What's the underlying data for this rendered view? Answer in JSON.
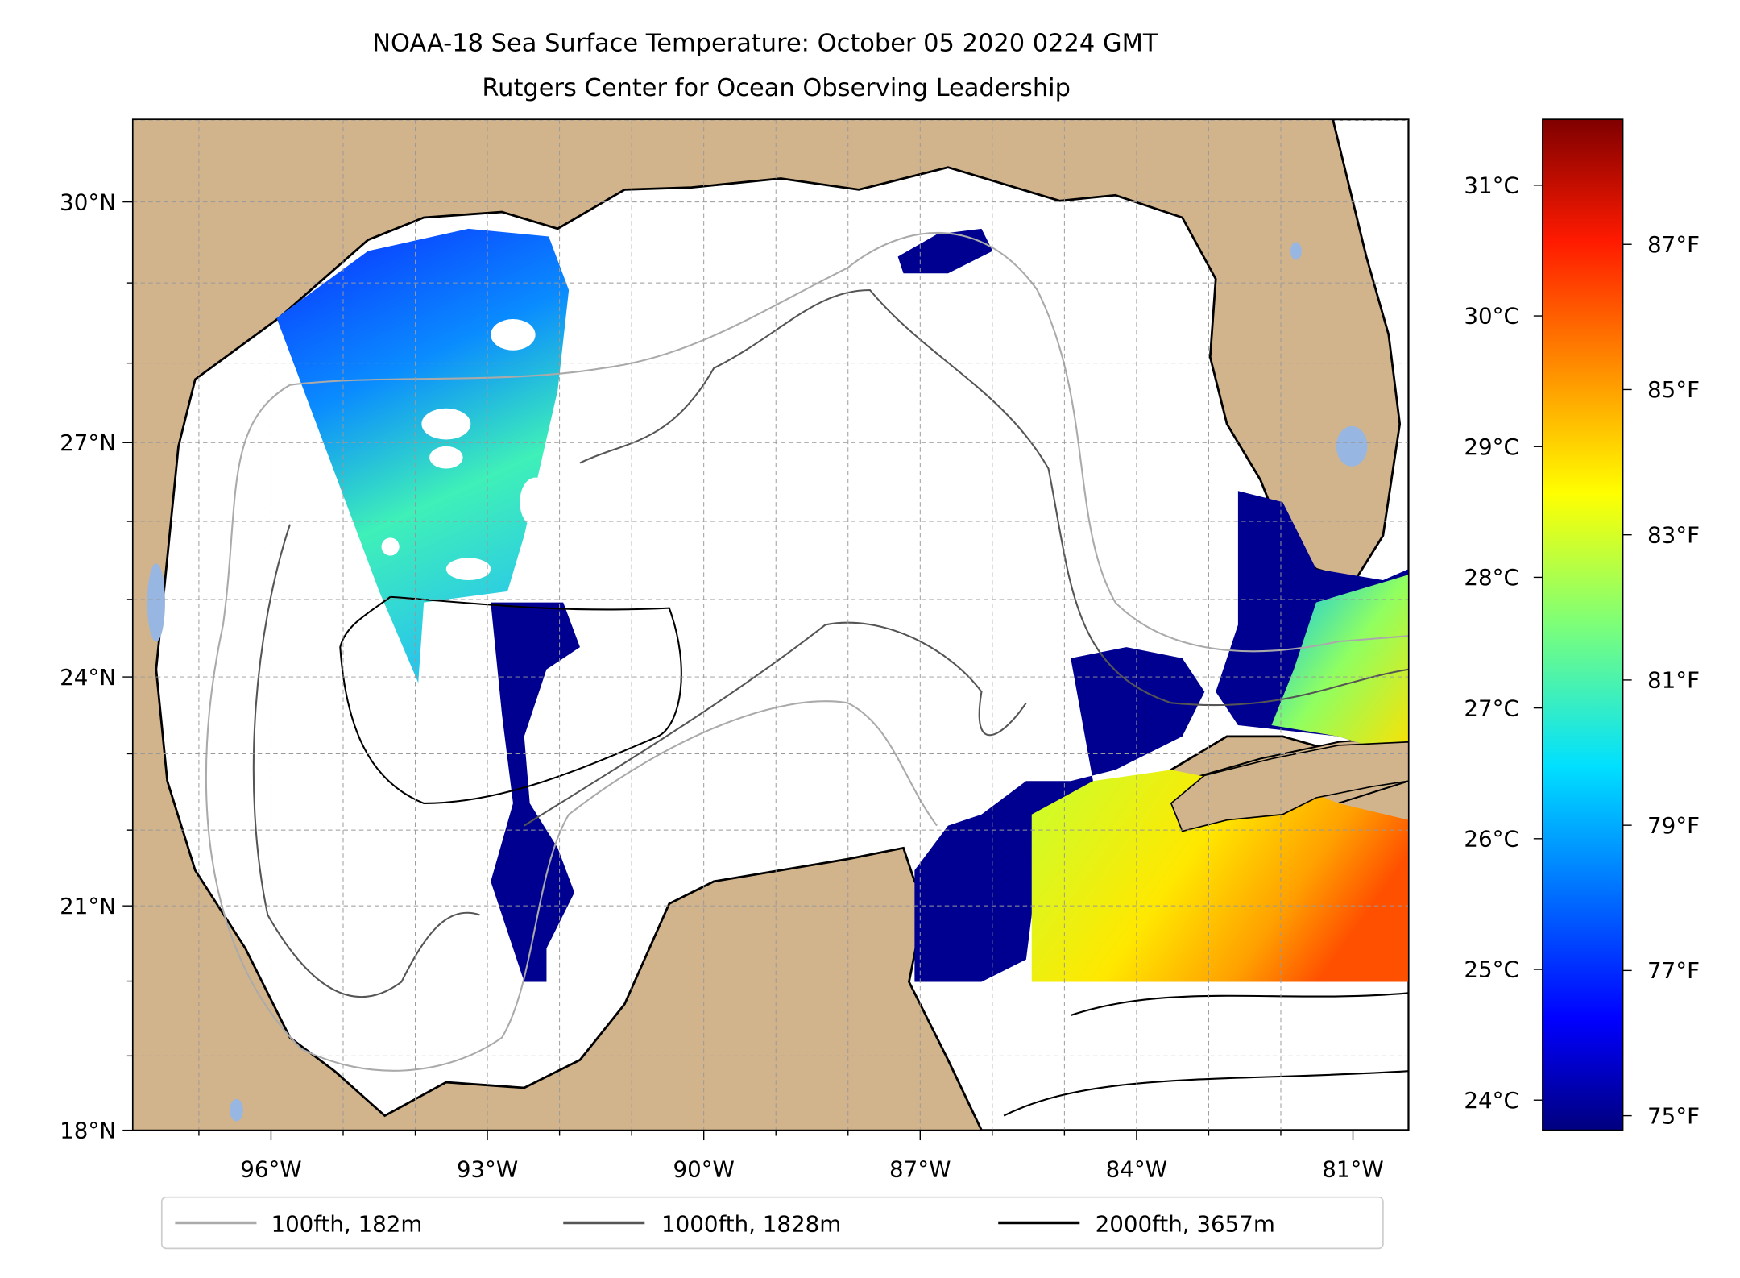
{
  "title": {
    "line1": "NOAA-18 Sea Surface Temperature: October 05 2020 0224 GMT",
    "line2": "Rutgers Center for Ocean Observing Leadership"
  },
  "colors": {
    "land": "#d2b48c",
    "ocean": "#ffffff",
    "lakes": "#97b6e1",
    "contour_100": "#aaaaaa",
    "contour_1000": "#555555",
    "contour_2000": "#000000"
  },
  "chart_data": {
    "type": "heatmap",
    "title": "NOAA-18 Sea Surface Temperature: October 05 2020 0224 GMT",
    "subtitle": "Rutgers Center for Ocean Observing Leadership",
    "colormap": "jet",
    "color_range_c": [
      23.8,
      31.5
    ],
    "lon_range": [
      -98,
      -80.2
    ],
    "lat_range": [
      18,
      30.5
    ],
    "grid": true,
    "x_ticks": [
      {
        "value": -96,
        "label": "96°W"
      },
      {
        "value": -93,
        "label": "93°W"
      },
      {
        "value": -90,
        "label": "90°W"
      },
      {
        "value": -87,
        "label": "87°W"
      },
      {
        "value": -84,
        "label": "84°W"
      },
      {
        "value": -81,
        "label": "81°W"
      }
    ],
    "y_ticks": [
      {
        "value": 30,
        "label": "30°N"
      },
      {
        "value": 27,
        "label": "27°N"
      },
      {
        "value": 24,
        "label": "24°N"
      },
      {
        "value": 21,
        "label": "21°N"
      },
      {
        "value": 18,
        "label": "18°N"
      }
    ],
    "colorbar_c_ticks": [
      {
        "value": 31,
        "label": "31°C"
      },
      {
        "value": 30,
        "label": "30°C"
      },
      {
        "value": 29,
        "label": "29°C"
      },
      {
        "value": 28,
        "label": "28°C"
      },
      {
        "value": 27,
        "label": "27°C"
      },
      {
        "value": 26,
        "label": "26°C"
      },
      {
        "value": 25,
        "label": "25°C"
      },
      {
        "value": 24,
        "label": "24°C"
      }
    ],
    "colorbar_f_ticks": [
      {
        "value": 87,
        "label": "87°F"
      },
      {
        "value": 85,
        "label": "85°F"
      },
      {
        "value": 83,
        "label": "83°F"
      },
      {
        "value": 81,
        "label": "81°F"
      },
      {
        "value": 79,
        "label": "79°F"
      },
      {
        "value": 77,
        "label": "77°F"
      },
      {
        "value": 75,
        "label": "75°F"
      }
    ],
    "legend": {
      "placement": "bottom",
      "entries": [
        {
          "label": "100fth, 182m",
          "color": "#aaaaaa"
        },
        {
          "label": "1000fth, 1828m",
          "color": "#555555"
        },
        {
          "label": "2000fth, 3657m",
          "color": "#000000"
        }
      ]
    }
  }
}
